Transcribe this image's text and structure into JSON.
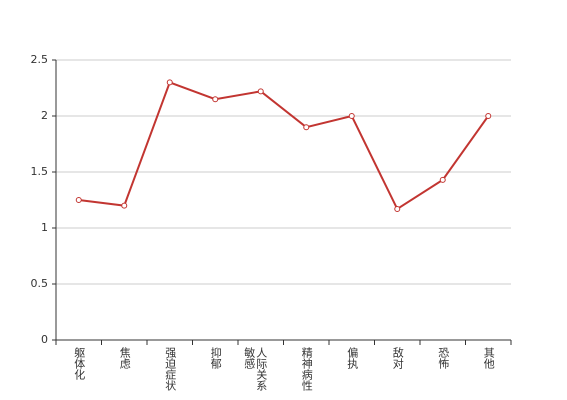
{
  "chart_data": {
    "type": "line",
    "categories": [
      "躯体化",
      "焦虑",
      "强迫症状",
      "抑郁",
      "人际关系敏感",
      "精神病性",
      "偏执",
      "敌对",
      "恐怖",
      "其他"
    ],
    "values": [
      1.25,
      1.2,
      2.3,
      2.15,
      2.22,
      1.9,
      2.0,
      1.17,
      1.43,
      2.0
    ],
    "color": "#c23531",
    "ylim": [
      0,
      2.5
    ],
    "yticks": [
      0,
      0.5,
      1,
      1.5,
      2,
      2.5
    ],
    "grid": true
  }
}
